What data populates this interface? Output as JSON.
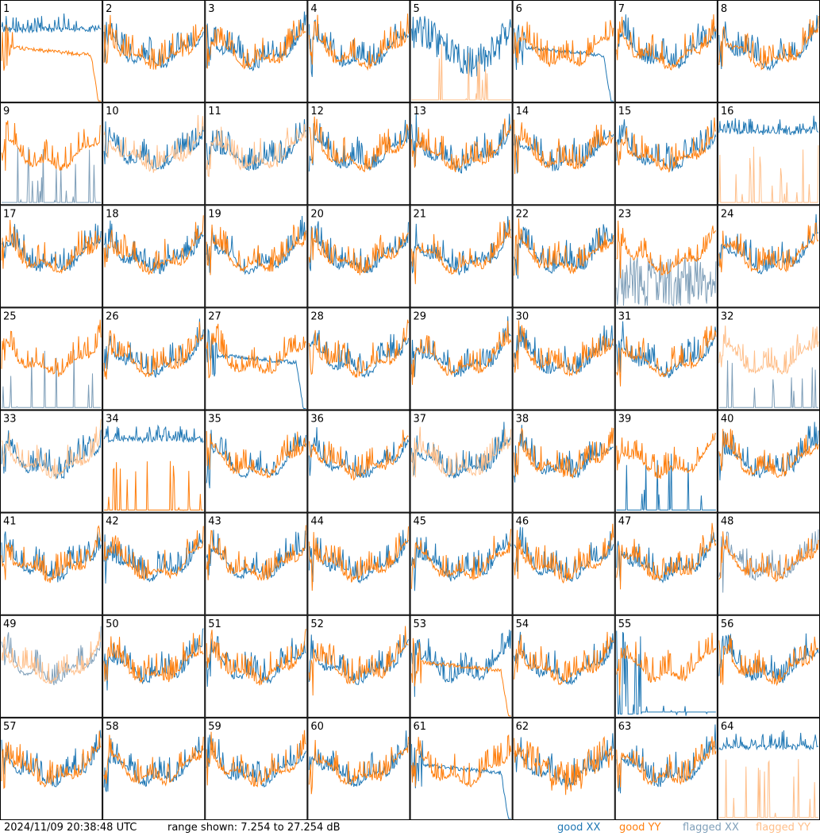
{
  "footer": {
    "timestamp": "2024/11/09 20:38:48 UTC",
    "range": "range shown: 7.254 to 27.254 dB"
  },
  "legend": [
    {
      "key": "good_xx",
      "label": "good XX",
      "color": "#1f77b4"
    },
    {
      "key": "good_yy",
      "label": "good YY",
      "color": "#ff7f0e"
    },
    {
      "key": "flagged_xx",
      "label": "flagged XX",
      "color": "#7f9fb9"
    },
    {
      "key": "flagged_yy",
      "label": "flagged YY",
      "color": "#ffbf8a"
    }
  ],
  "chart_data": {
    "type": "line",
    "layout": "8x8 small multiples",
    "y_unit": "dB",
    "ylim": [
      7.254,
      27.254
    ],
    "panels": [
      {
        "id": 1,
        "xx": "good",
        "yy": "good",
        "xx_shape": "flat_high",
        "yy_shape": "drop_right"
      },
      {
        "id": 2,
        "xx": "good",
        "yy": "good"
      },
      {
        "id": 3,
        "xx": "good",
        "yy": "good"
      },
      {
        "id": 4,
        "xx": "good",
        "yy": "good"
      },
      {
        "id": 5,
        "xx": "good",
        "yy": "flagged",
        "xx_shape": "noisy_mid",
        "yy_shape": "spikes"
      },
      {
        "id": 6,
        "xx": "good",
        "yy": "good",
        "xx_shape": "drop_right",
        "yy_shape": "typical"
      },
      {
        "id": 7,
        "xx": "good",
        "yy": "good"
      },
      {
        "id": 8,
        "xx": "good",
        "yy": "good"
      },
      {
        "id": 9,
        "xx": "flagged",
        "yy": "good",
        "xx_shape": "spikes",
        "yy_shape": "typical"
      },
      {
        "id": 10,
        "xx": "good",
        "yy": "flagged"
      },
      {
        "id": 11,
        "xx": "good",
        "yy": "flagged"
      },
      {
        "id": 12,
        "xx": "good",
        "yy": "good"
      },
      {
        "id": 13,
        "xx": "good",
        "yy": "good"
      },
      {
        "id": 14,
        "xx": "good",
        "yy": "good"
      },
      {
        "id": 15,
        "xx": "good",
        "yy": "good"
      },
      {
        "id": 16,
        "xx": "good",
        "yy": "flagged",
        "xx_shape": "flat_high",
        "yy_shape": "spikes"
      },
      {
        "id": 17,
        "xx": "good",
        "yy": "good"
      },
      {
        "id": 18,
        "xx": "good",
        "yy": "good"
      },
      {
        "id": 19,
        "xx": "good",
        "yy": "good"
      },
      {
        "id": 20,
        "xx": "good",
        "yy": "good"
      },
      {
        "id": 21,
        "xx": "good",
        "yy": "good"
      },
      {
        "id": 22,
        "xx": "good",
        "yy": "good"
      },
      {
        "id": 23,
        "xx": "flagged",
        "yy": "good",
        "xx_shape": "noisy_low",
        "yy_shape": "typical"
      },
      {
        "id": 24,
        "xx": "good",
        "yy": "good"
      },
      {
        "id": 25,
        "xx": "flagged",
        "yy": "good",
        "xx_shape": "spikes",
        "yy_shape": "typical"
      },
      {
        "id": 26,
        "xx": "good",
        "yy": "good"
      },
      {
        "id": 27,
        "xx": "good",
        "yy": "good",
        "xx_shape": "drop_right",
        "yy_shape": "typical"
      },
      {
        "id": 28,
        "xx": "good",
        "yy": "good"
      },
      {
        "id": 29,
        "xx": "good",
        "yy": "good"
      },
      {
        "id": 30,
        "xx": "good",
        "yy": "good"
      },
      {
        "id": 31,
        "xx": "good",
        "yy": "good"
      },
      {
        "id": 32,
        "xx": "flagged",
        "yy": "flagged",
        "xx_shape": "spikes",
        "yy_shape": "typical"
      },
      {
        "id": 33,
        "xx": "good",
        "yy": "flagged"
      },
      {
        "id": 34,
        "xx": "good",
        "yy": "good",
        "xx_shape": "flat_high",
        "yy_shape": "spikes"
      },
      {
        "id": 35,
        "xx": "good",
        "yy": "good"
      },
      {
        "id": 36,
        "xx": "good",
        "yy": "good"
      },
      {
        "id": 37,
        "xx": "good",
        "yy": "flagged"
      },
      {
        "id": 38,
        "xx": "good",
        "yy": "good"
      },
      {
        "id": 39,
        "xx": "good",
        "yy": "good",
        "xx_shape": "spikes",
        "yy_shape": "typical"
      },
      {
        "id": 40,
        "xx": "good",
        "yy": "good"
      },
      {
        "id": 41,
        "xx": "good",
        "yy": "good"
      },
      {
        "id": 42,
        "xx": "good",
        "yy": "good"
      },
      {
        "id": 43,
        "xx": "good",
        "yy": "good"
      },
      {
        "id": 44,
        "xx": "good",
        "yy": "good"
      },
      {
        "id": 45,
        "xx": "good",
        "yy": "good"
      },
      {
        "id": 46,
        "xx": "good",
        "yy": "good"
      },
      {
        "id": 47,
        "xx": "good",
        "yy": "good"
      },
      {
        "id": 48,
        "xx": "flagged",
        "yy": "good"
      },
      {
        "id": 49,
        "xx": "flagged",
        "yy": "flagged"
      },
      {
        "id": 50,
        "xx": "good",
        "yy": "good"
      },
      {
        "id": 51,
        "xx": "good",
        "yy": "good"
      },
      {
        "id": 52,
        "xx": "good",
        "yy": "good"
      },
      {
        "id": 53,
        "xx": "good",
        "yy": "good",
        "xx_shape": "typical",
        "yy_shape": "drop_right"
      },
      {
        "id": 54,
        "xx": "good",
        "yy": "good"
      },
      {
        "id": 55,
        "xx": "good",
        "yy": "good",
        "xx_shape": "spikes_low",
        "yy_shape": "typical"
      },
      {
        "id": 56,
        "xx": "good",
        "yy": "good"
      },
      {
        "id": 57,
        "xx": "good",
        "yy": "good"
      },
      {
        "id": 58,
        "xx": "good",
        "yy": "good"
      },
      {
        "id": 59,
        "xx": "good",
        "yy": "good"
      },
      {
        "id": 60,
        "xx": "good",
        "yy": "good"
      },
      {
        "id": 61,
        "xx": "good",
        "yy": "good",
        "xx_shape": "drop_right",
        "yy_shape": "typical"
      },
      {
        "id": 62,
        "xx": "good",
        "yy": "good",
        "xx_shape": "typical",
        "yy_shape": "noisy_mid"
      },
      {
        "id": 63,
        "xx": "good",
        "yy": "good"
      },
      {
        "id": 64,
        "xx": "good",
        "yy": "flagged",
        "xx_shape": "flat_high",
        "yy_shape": "spikes"
      }
    ]
  }
}
